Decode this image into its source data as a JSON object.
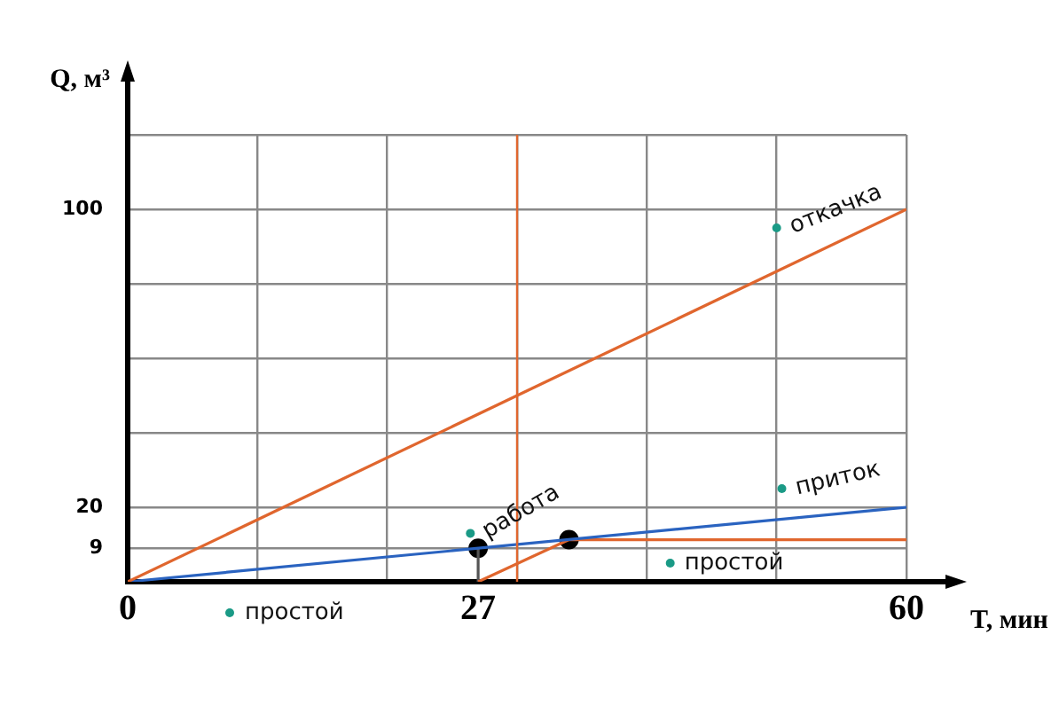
{
  "chart_data": {
    "type": "line",
    "xlabel": "T, мин",
    "ylabel": "Q, м³",
    "xlim": [
      0,
      60
    ],
    "ylim": [
      0,
      120
    ],
    "xticks": [
      0,
      {
        "value": 10,
        "label": null
      },
      {
        "value": 20,
        "label": null
      },
      27,
      {
        "value": 30,
        "label": null
      },
      {
        "value": 40,
        "label": null
      },
      {
        "value": 50,
        "label": null
      },
      60
    ],
    "yticks": [
      {
        "value": 0,
        "label": null
      },
      9,
      20,
      {
        "value": 40,
        "label": null
      },
      {
        "value": 60,
        "label": null
      },
      {
        "value": 80,
        "label": null
      },
      100,
      {
        "value": 120,
        "label": null
      }
    ],
    "series": [
      {
        "type": "line",
        "color": "#e0662e",
        "x": [
          0,
          60
        ],
        "values": [
          0,
          100
        ]
      },
      {
        "type": "line",
        "color": "#2a63c0",
        "x": [
          0,
          60
        ],
        "values": [
          0,
          20
        ]
      },
      {
        "type": "line",
        "color": "#e0662e",
        "x": [
          27,
          34,
          60
        ],
        "values": [
          0,
          11.3,
          11.3
        ]
      },
      {
        "type": "line",
        "color": "#555555",
        "x": [
          27,
          27
        ],
        "values": [
          0,
          9
        ]
      },
      {
        "type": "scatter",
        "color": "#000000",
        "marker": "circle",
        "x": [
          27,
          34
        ],
        "values": [
          9,
          11.3
        ]
      }
    ],
    "ref_lines": [
      {
        "axis": "x",
        "value": 30,
        "color": "#e0662e"
      }
    ],
    "annotations": [
      {
        "text": "откачка",
        "x": 50,
        "y": 95
      },
      {
        "text": "приток",
        "x": 50.4,
        "y": 25
      },
      {
        "text": "работа",
        "x": 26.4,
        "y": 13
      },
      {
        "text": "простой",
        "x": 41.8,
        "y": 5
      },
      "простой"
    ],
    "grid": true,
    "legend": false,
    "marker": "none"
  }
}
